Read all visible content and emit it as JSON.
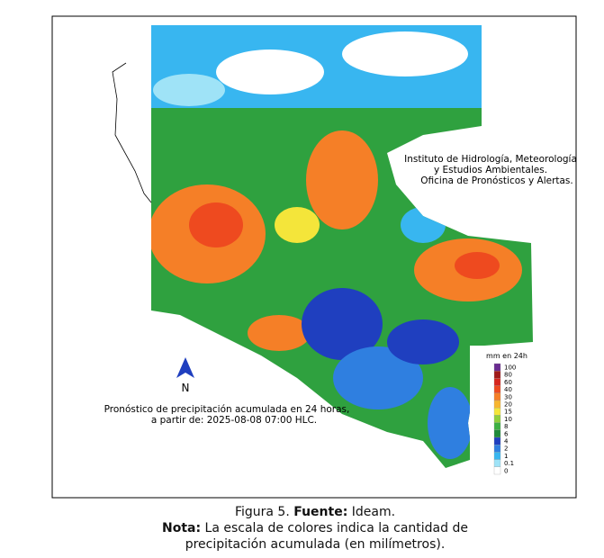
{
  "institute": [
    "Instituto de Hidrología, Meteorología",
    "y Estudios Ambientales.",
    "Oficina de Pronósticos y Alertas."
  ],
  "forecast": [
    "Pronóstico de precipitación acumulada en 24 horas,",
    "a partir de: 2025-08-08 07:00 HLC."
  ],
  "north": "N",
  "legend": {
    "title": "mm en 24h",
    "items": [
      {
        "label": "100",
        "color": "#6a2c91"
      },
      {
        "label": "80",
        "color": "#a01a1a"
      },
      {
        "label": "60",
        "color": "#d7261e"
      },
      {
        "label": "40",
        "color": "#ee4a1f"
      },
      {
        "label": "30",
        "color": "#f57f27"
      },
      {
        "label": "20",
        "color": "#f7b52f"
      },
      {
        "label": "15",
        "color": "#f4e53a"
      },
      {
        "label": "10",
        "color": "#8fcf3c"
      },
      {
        "label": "8",
        "color": "#3cb043"
      },
      {
        "label": "6",
        "color": "#1e8a3a"
      },
      {
        "label": "4",
        "color": "#1f3fbf"
      },
      {
        "label": "2",
        "color": "#2f7fe0"
      },
      {
        "label": "1",
        "color": "#38b6f0"
      },
      {
        "label": "0.1",
        "color": "#9fe3f7"
      },
      {
        "label": "0",
        "color": "#ffffff"
      }
    ]
  },
  "caption": {
    "figure": "Figura 5.",
    "source_label": "Fuente:",
    "source": "Ideam.",
    "note_label": "Nota:",
    "note": "La escala de colores indica la cantidad de precipitación acumulada (en milímetros)."
  }
}
